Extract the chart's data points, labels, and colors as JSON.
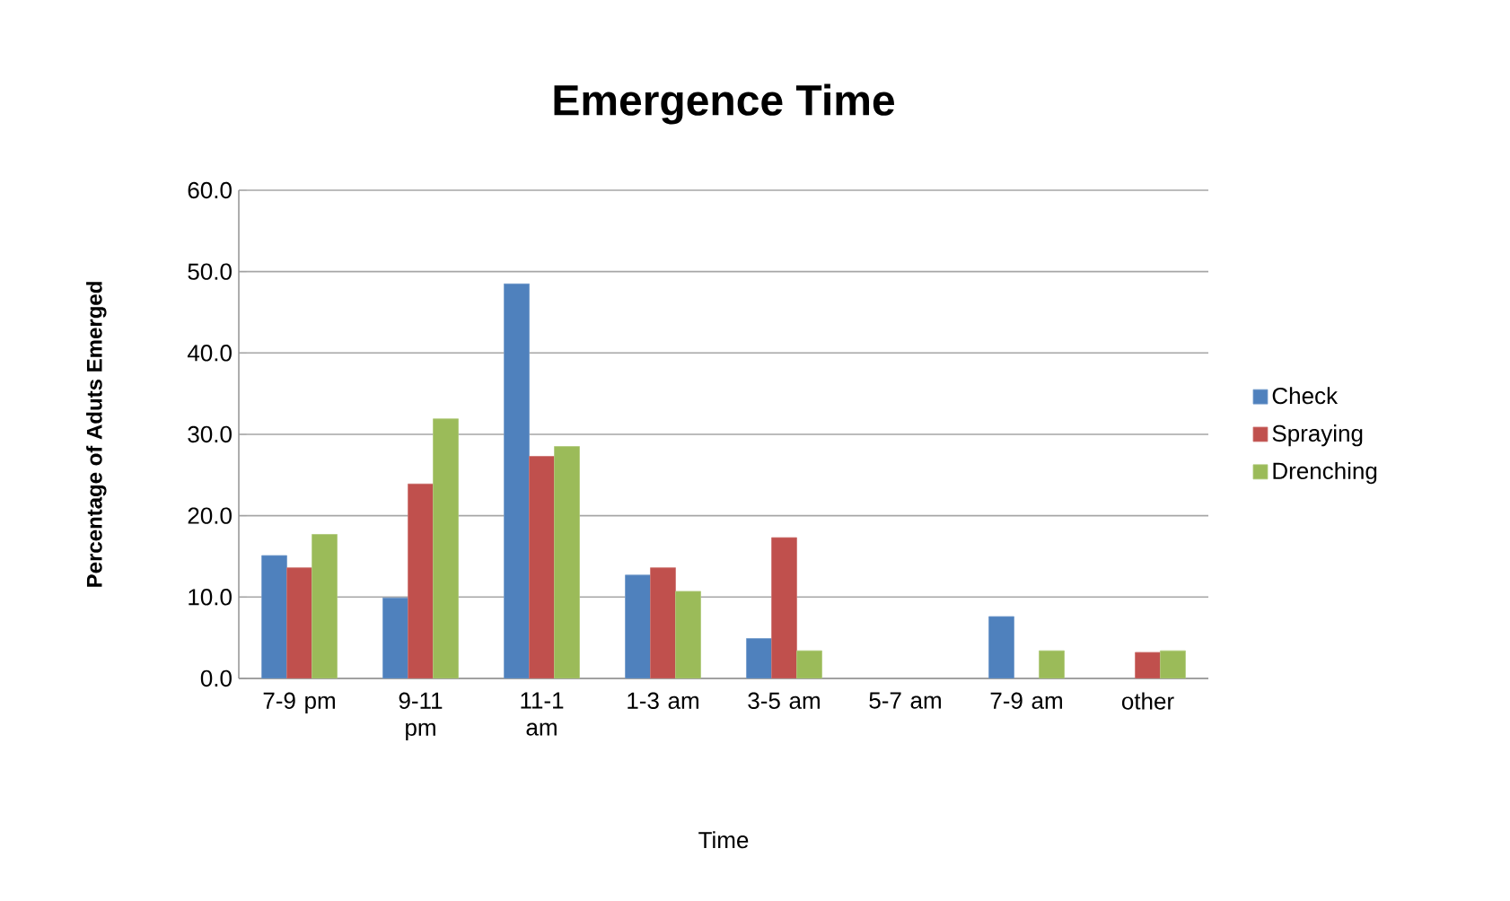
{
  "chart_data": {
    "type": "bar",
    "title": "Emergence Time",
    "xlabel": "Time",
    "ylabel": "Percentage of Aduts Emerged",
    "categories": [
      "7-9 pm",
      "9-11 pm",
      "11-1 am",
      "1-3 am",
      "3-5 am",
      "5-7 am",
      "7-9 am",
      "other"
    ],
    "series": [
      {
        "name": "Check",
        "color": "#4f81bd",
        "values": [
          15.1,
          9.9,
          48.5,
          12.7,
          4.9,
          null,
          7.6,
          null
        ]
      },
      {
        "name": "Spraying",
        "color": "#c0504d",
        "values": [
          13.6,
          23.9,
          27.3,
          13.6,
          17.3,
          null,
          null,
          3.2
        ]
      },
      {
        "name": "Drenching",
        "color": "#9bbb59",
        "values": [
          17.7,
          31.9,
          28.5,
          10.7,
          3.4,
          null,
          3.4,
          3.4
        ]
      }
    ],
    "ylim": [
      0,
      60
    ],
    "yticks": [
      {
        "value": 0,
        "label": "0.0"
      },
      {
        "value": 10,
        "label": "10.0"
      },
      {
        "value": 20,
        "label": "20.0"
      },
      {
        "value": 30,
        "label": "30.0"
      },
      {
        "value": 40,
        "label": "40.0"
      },
      {
        "value": 50,
        "label": "50.0"
      },
      {
        "value": 60,
        "label": "60.0"
      }
    ],
    "grid": "y",
    "legend": "right"
  }
}
